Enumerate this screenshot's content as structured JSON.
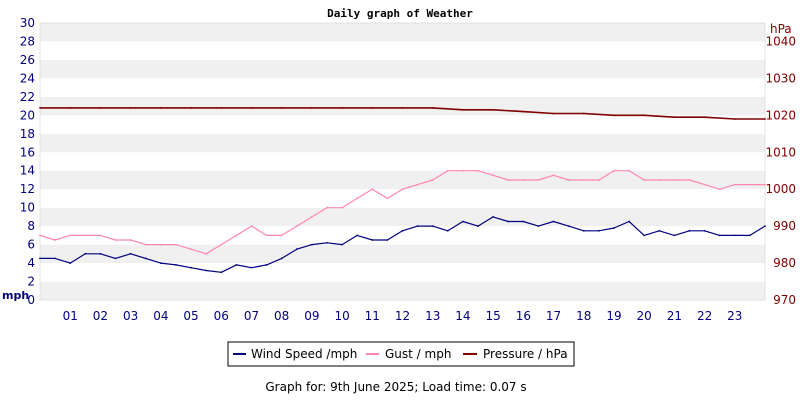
{
  "chart_data": {
    "type": "line",
    "title": "Daily graph of Weather",
    "footer": "Graph for: 9th June 2025; Load time: 0.07 s",
    "left_axis": {
      "unit": "mph",
      "range": [
        0,
        30
      ],
      "ticks": [
        0,
        2,
        4,
        6,
        8,
        10,
        12,
        14,
        16,
        18,
        20,
        22,
        24,
        26,
        28,
        30
      ],
      "color": "#000080"
    },
    "right_axis": {
      "unit": "hPa",
      "range": [
        970,
        1045
      ],
      "ticks": [
        970,
        980,
        990,
        1000,
        1010,
        1020,
        1030,
        1040
      ],
      "color": "#800000"
    },
    "x_axis": {
      "range": [
        0,
        24
      ],
      "ticks": [
        "01",
        "02",
        "03",
        "04",
        "05",
        "06",
        "07",
        "08",
        "09",
        "10",
        "11",
        "12",
        "13",
        "14",
        "15",
        "16",
        "17",
        "18",
        "19",
        "20",
        "21",
        "22",
        "23"
      ]
    },
    "grid": "horizontal alternating bands",
    "legend_position": "bottom",
    "series": [
      {
        "name": "Wind Speed /mph",
        "color": "#000080",
        "axis": "left",
        "x": [
          0,
          0.5,
          1,
          1.5,
          2,
          2.5,
          3,
          3.5,
          4,
          4.5,
          5,
          5.5,
          6,
          6.5,
          7,
          7.5,
          8,
          8.5,
          9,
          9.5,
          10,
          10.5,
          11,
          11.5,
          12,
          12.5,
          13,
          13.5,
          14,
          14.5,
          15,
          15.5,
          16,
          16.5,
          17,
          17.5,
          18,
          18.5,
          19,
          19.5,
          20,
          20.5,
          21,
          21.5,
          22,
          22.5,
          23,
          23.5,
          24
        ],
        "values": [
          4.5,
          4.5,
          4.0,
          5.0,
          5.0,
          4.5,
          5.0,
          4.5,
          4.0,
          3.8,
          3.5,
          3.2,
          3.0,
          3.8,
          3.5,
          3.8,
          4.5,
          5.5,
          6.0,
          6.2,
          6.0,
          7.0,
          6.5,
          6.5,
          7.5,
          8.0,
          8.0,
          7.5,
          8.5,
          8.0,
          9.0,
          8.5,
          8.5,
          8.0,
          8.5,
          8.0,
          7.5,
          7.5,
          7.8,
          8.5,
          7.0,
          7.5,
          7.0,
          7.5,
          7.5,
          7.0,
          7.0,
          7.0,
          8.0
        ]
      },
      {
        "name": "Gust / mph",
        "color": "#ff88aa",
        "axis": "left",
        "x": [
          0,
          0.5,
          1,
          1.5,
          2,
          2.5,
          3,
          3.5,
          4,
          4.5,
          5,
          5.5,
          6,
          6.5,
          7,
          7.5,
          8,
          8.5,
          9,
          9.5,
          10,
          10.5,
          11,
          11.5,
          12,
          12.5,
          13,
          13.5,
          14,
          14.5,
          15,
          15.5,
          16,
          16.5,
          17,
          17.5,
          18,
          18.5,
          19,
          19.5,
          20,
          20.5,
          21,
          21.5,
          22,
          22.5,
          23,
          23.5,
          24
        ],
        "values": [
          7,
          6.5,
          7,
          7,
          7,
          6.5,
          6.5,
          6,
          6,
          6,
          5.5,
          5,
          6,
          7,
          8,
          7,
          7,
          8,
          9,
          10,
          10,
          11,
          12,
          11,
          12,
          12.5,
          13,
          14,
          14,
          14,
          13.5,
          13,
          13,
          13,
          13.5,
          13,
          13,
          13,
          14,
          14,
          13,
          13,
          13,
          13,
          12.5,
          12,
          12.5,
          12.5,
          12.5
        ]
      },
      {
        "name": "Pressure / hPa",
        "color": "#800000",
        "axis": "right",
        "x": [
          0,
          1,
          2,
          3,
          4,
          5,
          6,
          7,
          8,
          9,
          10,
          11,
          12,
          13,
          14,
          15,
          16,
          17,
          18,
          19,
          20,
          21,
          22,
          23,
          24
        ],
        "values": [
          1022,
          1022,
          1022,
          1022,
          1022,
          1022,
          1022,
          1022,
          1022,
          1022,
          1022,
          1022,
          1022,
          1022,
          1021.5,
          1021.5,
          1021,
          1020.5,
          1020.5,
          1020,
          1020,
          1019.5,
          1019.5,
          1019,
          1019
        ]
      }
    ]
  }
}
